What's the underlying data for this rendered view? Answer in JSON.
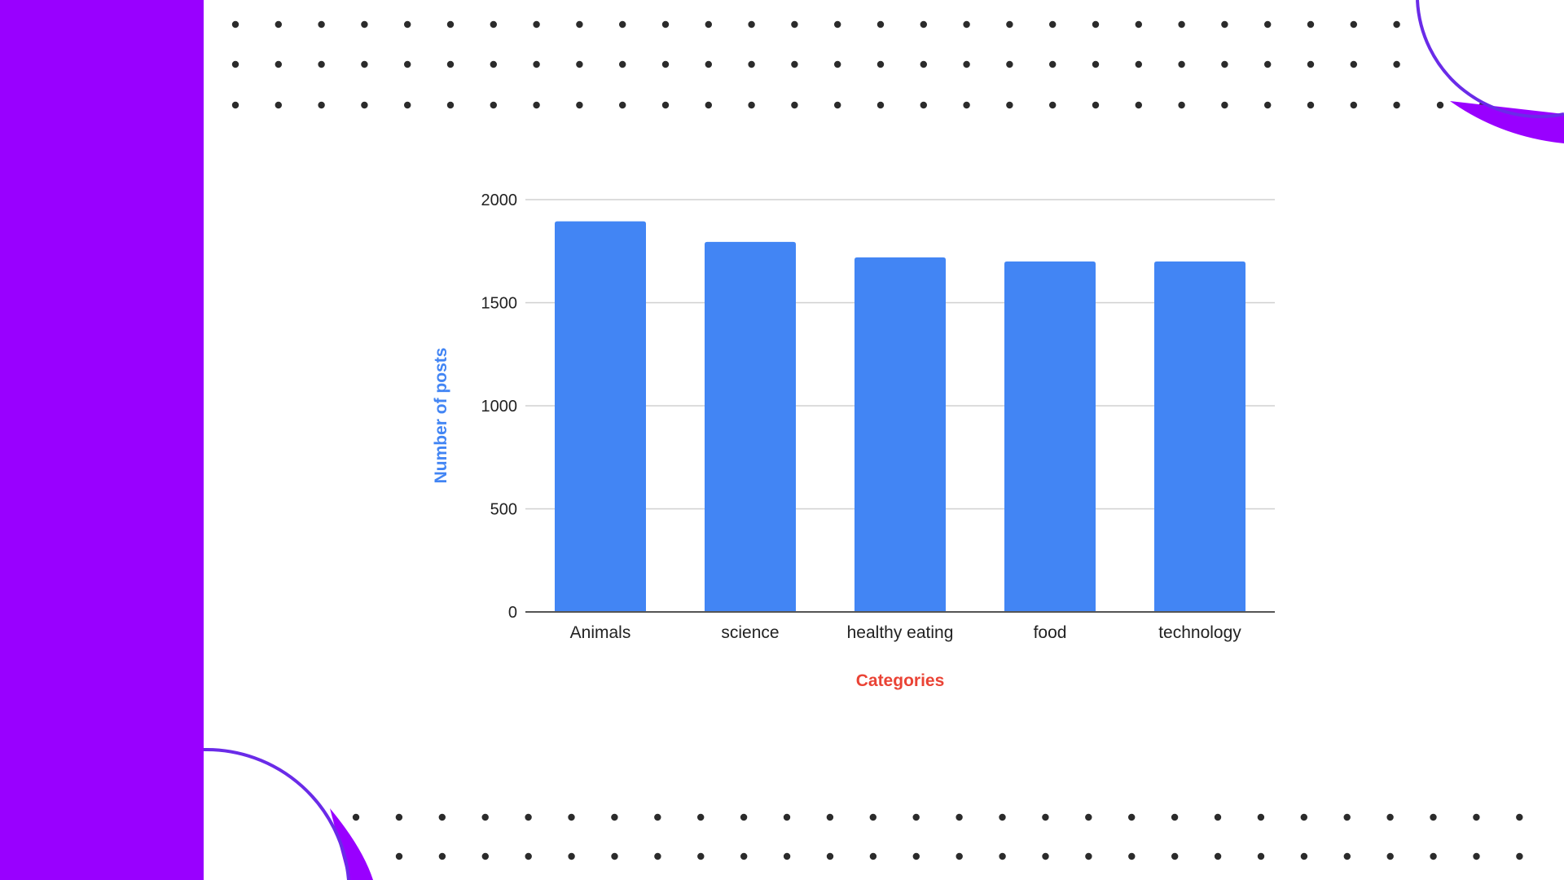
{
  "theme": {
    "accent": "#9900FF",
    "accent_outline": "#6A2BE8",
    "bar_color": "#4285F4",
    "dot_color": "#2b2b2b",
    "grid_color": "#d0d0d0",
    "axis_color": "#555555",
    "xlabel_color": "#EA4335",
    "ylabel_color": "#4285F4"
  },
  "chart_data": {
    "type": "bar",
    "categories": [
      "Animals",
      "science",
      "healthy eating",
      "food",
      "technology"
    ],
    "values": [
      1895,
      1795,
      1720,
      1700,
      1700
    ],
    "xlabel": "Categories",
    "ylabel": "Number of posts",
    "ylim": [
      0,
      2000
    ],
    "yticks": [
      "0",
      "500",
      "1000",
      "1500",
      "2000"
    ],
    "grid": true,
    "legend": "none"
  }
}
